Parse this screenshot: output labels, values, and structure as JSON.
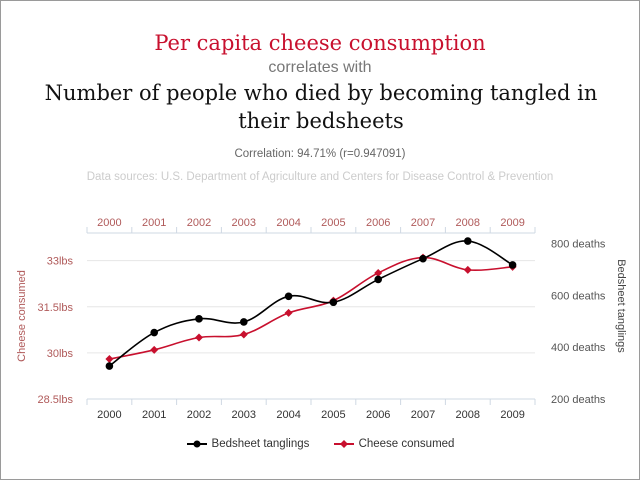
{
  "header": {
    "title_top": "Per capita cheese consumption",
    "connector": "correlates with",
    "title_bottom": "Number of people who died by becoming tangled in their bedsheets",
    "correlation": "Correlation: 94.71% (r=0.947091)",
    "sources": "Data sources: U.S. Department of Agriculture and Centers for Disease Control & Prevention"
  },
  "colors": {
    "cheese": "#c8102e",
    "bedsheet": "#000000",
    "grid": "#e6e6e6",
    "axis_left_text": "#b05a5a",
    "axis_right_text": "#555555"
  },
  "chart_data": {
    "type": "line",
    "categories": [
      "2000",
      "2001",
      "2002",
      "2003",
      "2004",
      "2005",
      "2006",
      "2007",
      "2008",
      "2009"
    ],
    "series": [
      {
        "name": "Bedsheet tanglings",
        "axis": "right",
        "values": [
          327,
          456,
          509,
          497,
          596,
          573,
          661,
          741,
          809,
          717
        ]
      },
      {
        "name": "Cheese consumed",
        "axis": "left",
        "values": [
          29.8,
          30.1,
          30.5,
          30.6,
          31.3,
          31.7,
          32.6,
          33.1,
          32.7,
          32.8
        ]
      }
    ],
    "left_axis": {
      "label": "Cheese consumed",
      "ticks": [
        "33lbs",
        "31.5lbs",
        "30lbs",
        "28.5lbs"
      ],
      "tick_values": [
        33,
        31.5,
        30,
        28.5
      ],
      "range": [
        28.5,
        33.9
      ]
    },
    "right_axis": {
      "label": "Bedsheet tanglings",
      "ticks": [
        "800 deaths",
        "600 deaths",
        "400 deaths",
        "200 deaths"
      ],
      "tick_values": [
        800,
        600,
        400,
        200
      ],
      "range": [
        200,
        840
      ]
    },
    "legend": [
      "Bedsheet tanglings",
      "Cheese consumed"
    ],
    "legend_position": "bottom"
  }
}
